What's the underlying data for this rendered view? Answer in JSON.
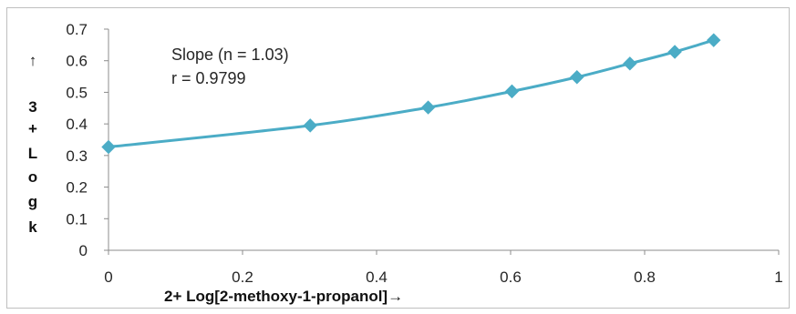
{
  "chart_data": {
    "type": "line",
    "x": [
      0,
      0.301,
      0.477,
      0.602,
      0.699,
      0.778,
      0.845,
      0.903
    ],
    "series": [
      {
        "values": [
          0.327,
          0.395,
          0.452,
          0.503,
          0.548,
          0.591,
          0.628,
          0.665
        ]
      }
    ],
    "xlim": [
      0,
      1
    ],
    "ylim": [
      0,
      0.7
    ],
    "xticks": [
      "0",
      "0.2",
      "0.4",
      "0.6",
      "0.8",
      "1"
    ],
    "yticks": [
      "0",
      "0.1",
      "0.2",
      "0.3",
      "0.4",
      "0.5",
      "0.6",
      "0.7"
    ],
    "xlabel": "2+ Log[2-methoxy-1-propanol]→",
    "ylabel_lines": [
      "↑",
      "3",
      "+",
      "L",
      "o",
      "g",
      "k"
    ],
    "annotations": [
      "Slope (n = 1.03)",
      "r = 0.9799"
    ],
    "line_color": "#4bacc6",
    "grid": false
  }
}
